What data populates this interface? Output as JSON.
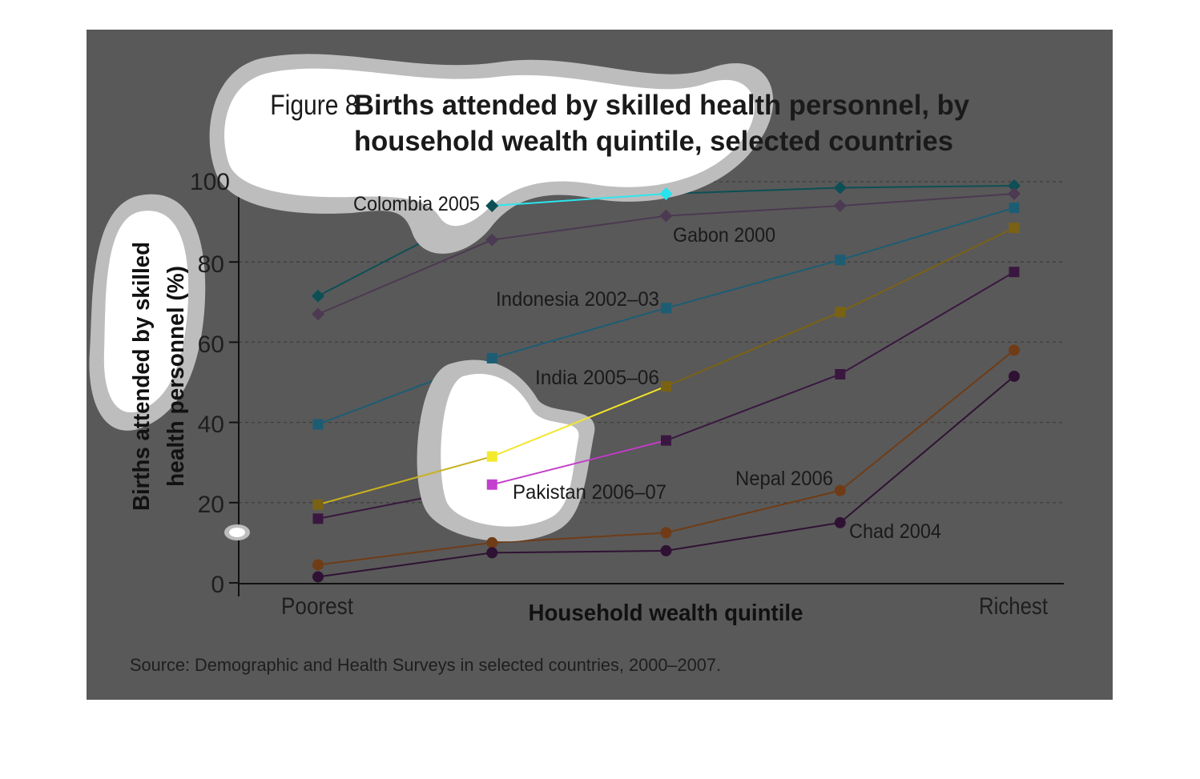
{
  "figure": {
    "number_label": "Figure 8",
    "title_line1": "Births attended by skilled health personnel, by",
    "title_line2": "household wealth quintile, selected countries"
  },
  "source": "Source: Demographic and Health Surveys in selected countries, 2000–2007.",
  "colors": {
    "panel": "#595959",
    "grid": "#3e3e3e",
    "axis": "#111111"
  },
  "chart_data": {
    "type": "line",
    "title": "Births attended by skilled health personnel, by household wealth quintile, selected countries",
    "xlabel": "Household wealth quintile",
    "ylabel_line1": "Births attended by skilled",
    "ylabel_line2": "health personnel (%)",
    "x_tick_labels": [
      "Poorest",
      "Richest"
    ],
    "y_ticks": [
      "0",
      "20",
      "40",
      "60",
      "80",
      "100"
    ],
    "ylim": [
      0,
      100
    ],
    "grid": "horizontal dashed",
    "legend": "direct labels on lines",
    "series": [
      {
        "name": "Colombia 2005",
        "marker": "diamond",
        "color": "#0d4f55",
        "values": [
          71.5,
          94,
          97,
          98.5,
          99
        ]
      },
      {
        "name": "Gabon 2000",
        "marker": "diamond",
        "color": "#4b3a52",
        "values": [
          67,
          85.5,
          91.5,
          94,
          97
        ]
      },
      {
        "name": "Indonesia 2002–03",
        "marker": "square",
        "color": "#1c5d74",
        "values": [
          39.5,
          56,
          68.5,
          80.5,
          93.5
        ]
      },
      {
        "name": "India 2005–06",
        "marker": "square",
        "color": "#7a6214",
        "values": [
          19.5,
          31.5,
          49,
          67.5,
          88.5
        ]
      },
      {
        "name": "Pakistan 2006–07",
        "marker": "square",
        "color": "#3a1740",
        "values": [
          16,
          24.5,
          35.5,
          52,
          77.5
        ]
      },
      {
        "name": "Nepal 2006",
        "marker": "circle",
        "color": "#6f3c17",
        "values": [
          4.5,
          10,
          12.5,
          23,
          58
        ]
      },
      {
        "name": "Chad 2004",
        "marker": "circle",
        "color": "#2f1233",
        "values": [
          1.5,
          7.5,
          8,
          15,
          51.5
        ]
      }
    ]
  }
}
